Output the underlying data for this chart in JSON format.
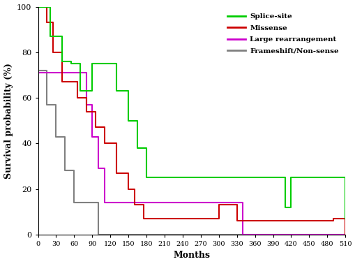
{
  "title": "",
  "xlabel": "Months",
  "ylabel": "Survival probability (%)",
  "xlim": [
    0,
    510
  ],
  "ylim": [
    0,
    100
  ],
  "xticks": [
    0,
    30,
    60,
    90,
    120,
    150,
    180,
    210,
    240,
    270,
    300,
    330,
    360,
    390,
    420,
    450,
    480,
    510
  ],
  "yticks": [
    0,
    20,
    40,
    60,
    80,
    100
  ],
  "legend_labels": [
    "Splice-site",
    "Missense",
    "Large rearrangement",
    "Frameshift/Non-sense"
  ],
  "colors": {
    "splice_site": "#00cc00",
    "missense": "#cc0000",
    "large_rearrangement": "#cc00cc",
    "frameshift": "#808080"
  },
  "splice_site": {
    "x": [
      0,
      20,
      40,
      55,
      70,
      90,
      120,
      130,
      150,
      165,
      180,
      230,
      410,
      420,
      510
    ],
    "y": [
      100,
      87,
      76,
      75,
      63,
      75,
      75,
      63,
      50,
      38,
      25,
      25,
      12,
      25,
      7
    ]
  },
  "missense": {
    "x": [
      0,
      15,
      25,
      40,
      55,
      65,
      80,
      95,
      110,
      130,
      150,
      160,
      175,
      210,
      280,
      300,
      330,
      355,
      490,
      510
    ],
    "y": [
      100,
      93,
      80,
      67,
      67,
      60,
      54,
      47,
      40,
      27,
      20,
      13,
      7,
      7,
      7,
      13,
      6,
      6,
      7,
      0
    ]
  },
  "large_rearrangement": {
    "x": [
      0,
      70,
      80,
      90,
      100,
      110,
      330,
      340,
      510
    ],
    "y": [
      71,
      71,
      57,
      43,
      29,
      14,
      14,
      0,
      0
    ]
  },
  "frameshift": {
    "x": [
      0,
      0,
      15,
      30,
      45,
      60,
      90,
      100,
      510
    ],
    "y": [
      100,
      72,
      57,
      43,
      28,
      14,
      14,
      0,
      0
    ]
  }
}
